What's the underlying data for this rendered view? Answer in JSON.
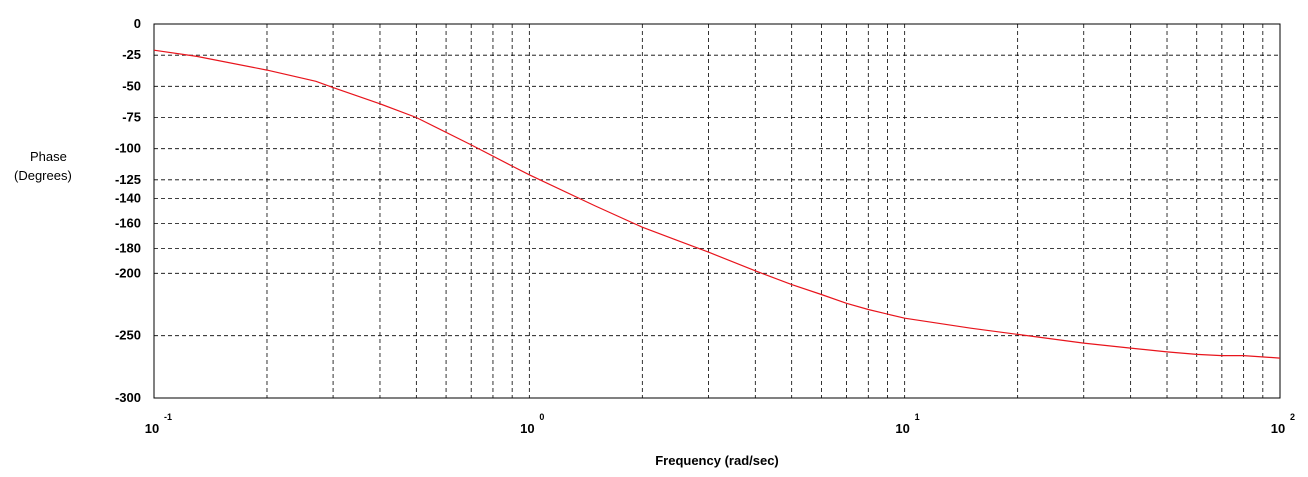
{
  "chart_data": {
    "type": "line",
    "xlabel": "Frequency (rad/sec)",
    "ylabel_lines": [
      "Phase",
      "(Degrees)"
    ],
    "xscale": "log",
    "xlim": [
      0.1,
      100
    ],
    "ylim": [
      -300,
      0
    ],
    "grid": true,
    "x_ticks": [
      {
        "base": "10",
        "exp": "-1"
      },
      {
        "base": "10",
        "exp": "0"
      },
      {
        "base": "10",
        "exp": "1"
      },
      {
        "base": "10",
        "exp": "2"
      }
    ],
    "y_ticks": [
      "0",
      "-25",
      "-50",
      "-75",
      "-100",
      "-125",
      "-140",
      "-160",
      "-180",
      "-200",
      "-250",
      "-300"
    ],
    "y_tick_values": [
      0,
      -25,
      -50,
      -75,
      -100,
      -125,
      -140,
      -160,
      -180,
      -200,
      -250,
      -300
    ],
    "series": [
      {
        "color": "#e8141c",
        "x": [
          0.1,
          0.13,
          0.2,
          0.27,
          0.3,
          0.4,
          0.5,
          0.7,
          0.9,
          1.0,
          1.5,
          2.0,
          2.5,
          3.0,
          4.0,
          5.0,
          6.0,
          7.0,
          8.0,
          10.0,
          15.0,
          20.0,
          30.0,
          40.0,
          50.0,
          60.0,
          70.0,
          80.0,
          100.0
        ],
        "y": [
          -21,
          -26,
          -37,
          -46,
          -51,
          -64,
          -75,
          -97,
          -114,
          -121,
          -146,
          -163,
          -174,
          -183,
          -198,
          -209,
          -217,
          -224,
          -229,
          -236,
          -244,
          -249,
          -256,
          -260,
          -263,
          -265,
          -266,
          -266,
          -268
        ]
      }
    ],
    "colors": {
      "line": "#e8141c",
      "grid": "#000000",
      "frame": "#000000"
    }
  }
}
